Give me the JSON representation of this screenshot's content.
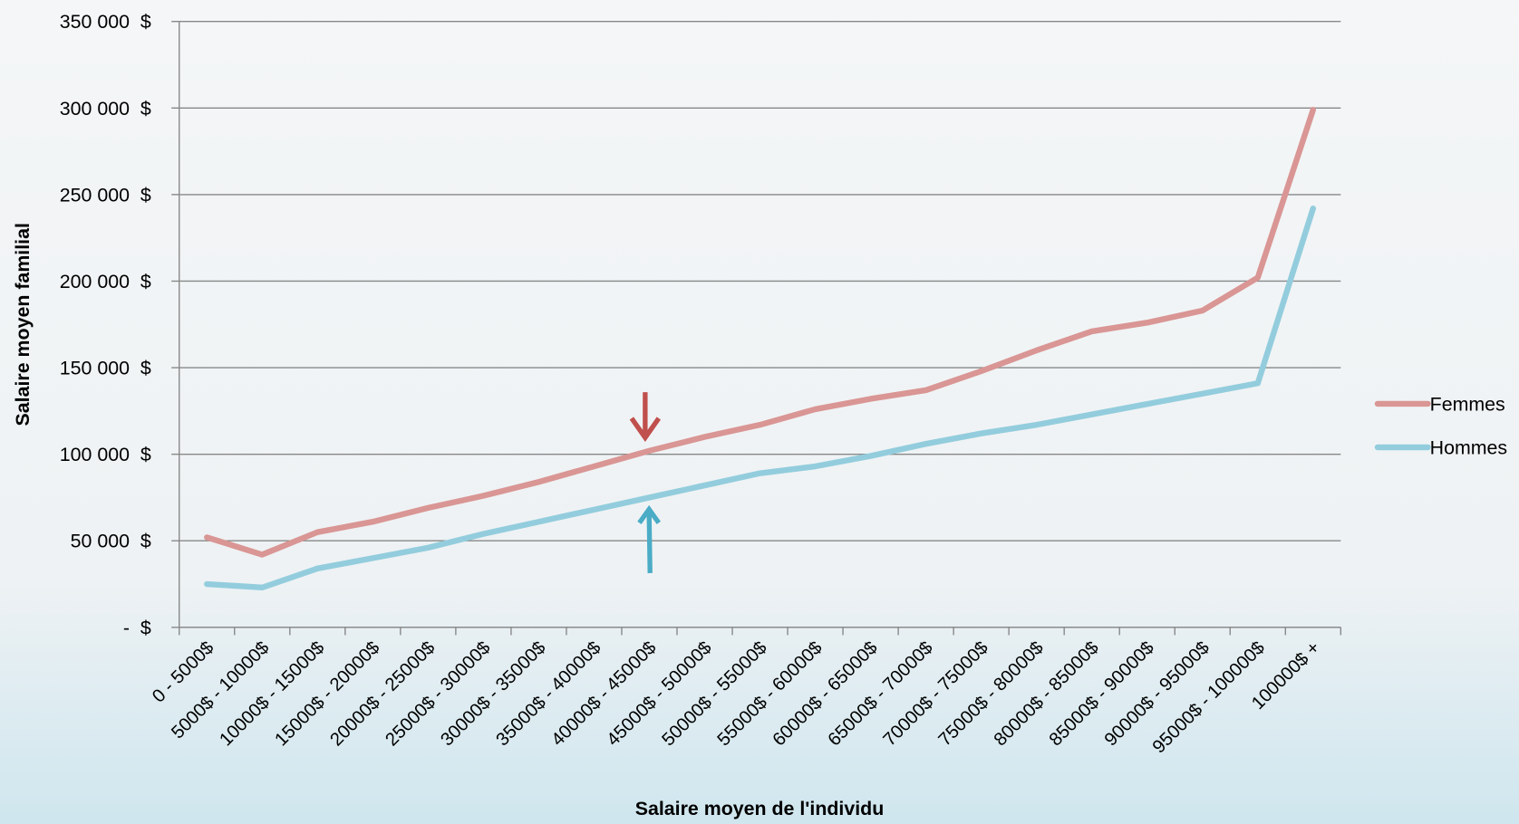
{
  "chart_data": {
    "type": "line",
    "x_label": "Salaire moyen de l'individu",
    "y_label": "Salaire moyen familial",
    "categories": [
      "0 - 5000$",
      "5000$ - 10000$",
      "10000$ - 15000$",
      "15000$ - 20000$",
      "20000$ - 25000$",
      "25000$ - 30000$",
      "30000$ - 35000$",
      "35000$ - 40000$",
      "40000$ - 45000$",
      "45000$ - 50000$",
      "50000$ - 55000$",
      "55000$ - 60000$",
      "60000$ - 65000$",
      "65000$ - 70000$",
      "70000$ - 75000$",
      "75000$ - 80000$",
      "80000$ - 85000$",
      "85000$ - 90000$",
      "90000$ - 95000$",
      "95000$ - 100000$",
      "100000$ +"
    ],
    "series": [
      {
        "name": "Femmes",
        "color": "#d99694",
        "values": [
          52000,
          42000,
          55000,
          61000,
          69000,
          76000,
          84000,
          93000,
          102000,
          110000,
          117000,
          126000,
          132000,
          137000,
          148000,
          160000,
          171000,
          176000,
          183000,
          202000,
          299000
        ]
      },
      {
        "name": "Hommes",
        "color": "#93cddd",
        "values": [
          25000,
          23000,
          34000,
          40000,
          46000,
          54000,
          61000,
          68000,
          75000,
          82000,
          89000,
          93000,
          99000,
          106000,
          112000,
          117000,
          123000,
          129000,
          135000,
          141000,
          242000
        ]
      }
    ],
    "ylim": [
      0,
      350000
    ],
    "yticks": [
      {
        "value": 0,
        "label": "-  $"
      },
      {
        "value": 50000,
        "label": "50 000  $"
      },
      {
        "value": 100000,
        "label": "100 000  $"
      },
      {
        "value": 150000,
        "label": "150 000  $"
      },
      {
        "value": 200000,
        "label": "200 000  $"
      },
      {
        "value": 250000,
        "label": "250 000  $"
      },
      {
        "value": 300000,
        "label": "300 000  $"
      },
      {
        "value": 350000,
        "label": "350 000  $"
      }
    ],
    "grid": true,
    "legend": "right"
  }
}
